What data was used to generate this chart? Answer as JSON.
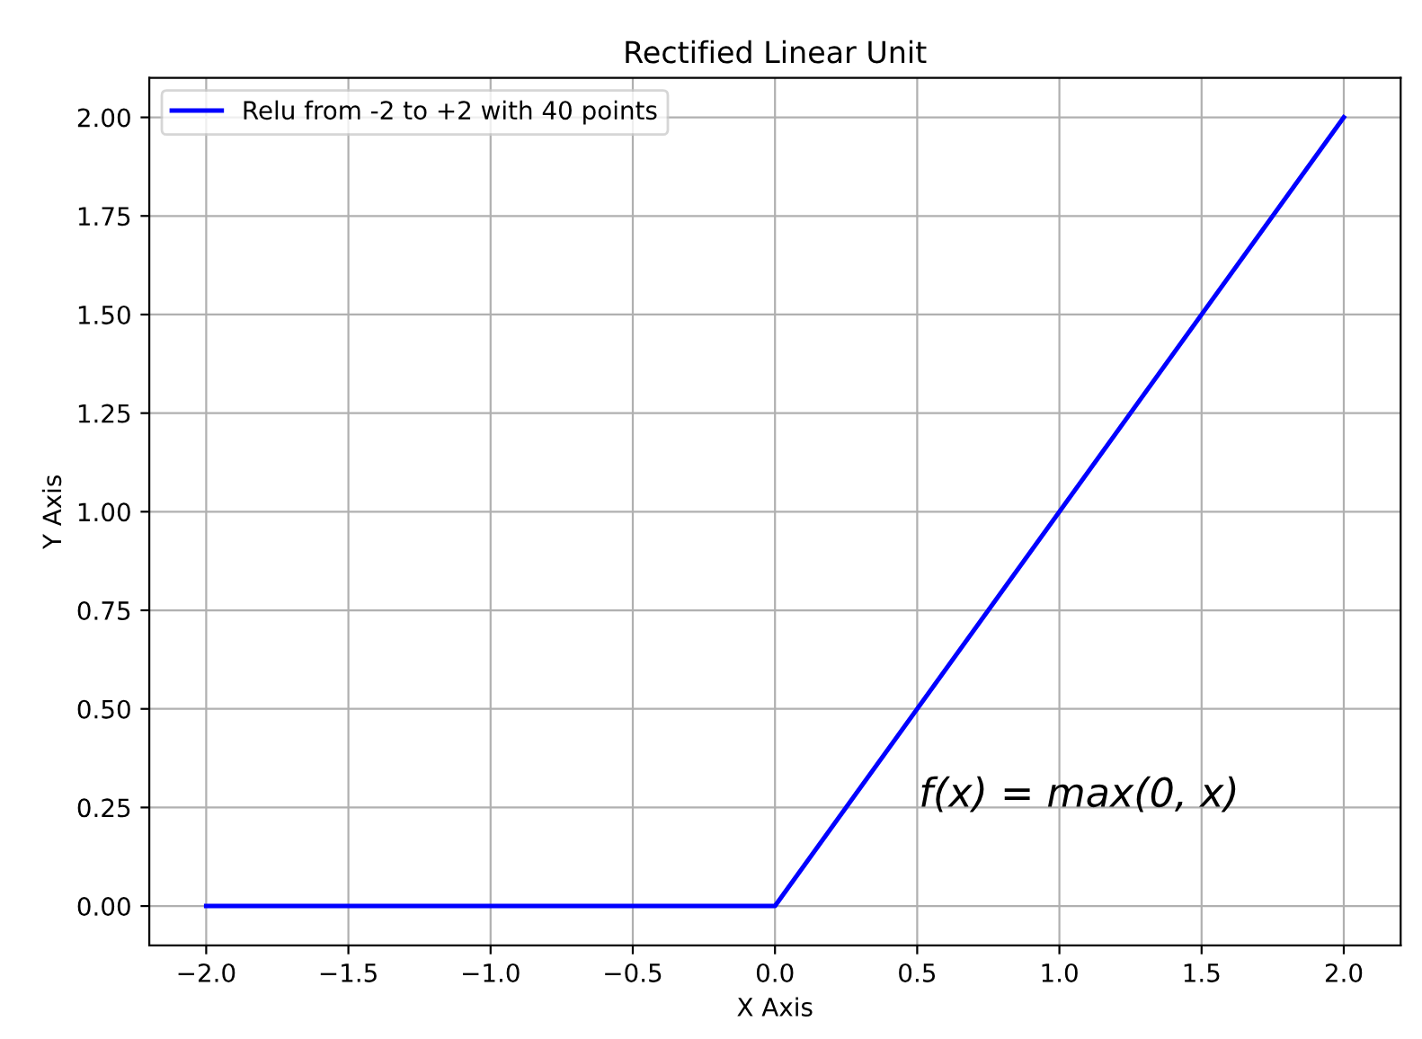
{
  "chart_data": {
    "type": "line",
    "title": "Rectified Linear Unit",
    "xlabel": "X Axis",
    "ylabel": "Y Axis",
    "series": [
      {
        "name": "Relu from -2 to +2 with 40 points",
        "color": "#0000ff",
        "x": [
          -2,
          0,
          2
        ],
        "values": [
          0,
          0,
          2
        ]
      }
    ],
    "annotations": [
      "f(x) = max(0, x)"
    ],
    "xlim": [
      -2.2,
      2.2
    ],
    "ylim": [
      -0.1,
      2.1
    ],
    "xticks": [
      {
        "value": -2,
        "label": "−2.0"
      },
      {
        "value": -1.5,
        "label": "−1.5"
      },
      {
        "value": -1,
        "label": "−1.0"
      },
      {
        "value": -0.5,
        "label": "−0.5"
      },
      {
        "value": 0,
        "label": "0.0"
      },
      {
        "value": 0.5,
        "label": "0.5"
      },
      {
        "value": 1,
        "label": "1.0"
      },
      {
        "value": 1.5,
        "label": "1.5"
      },
      {
        "value": 2,
        "label": "2.0"
      }
    ],
    "yticks": [
      {
        "value": 0,
        "label": "0.00"
      },
      {
        "value": 0.25,
        "label": "0.25"
      },
      {
        "value": 0.5,
        "label": "0.50"
      },
      {
        "value": 0.75,
        "label": "0.75"
      },
      {
        "value": 1,
        "label": "1.00"
      },
      {
        "value": 1.25,
        "label": "1.25"
      },
      {
        "value": 1.5,
        "label": "1.50"
      },
      {
        "value": 1.75,
        "label": "1.75"
      },
      {
        "value": 2,
        "label": "2.00"
      }
    ],
    "grid": true,
    "legend": "top left",
    "marker": "none",
    "line_style": "solid"
  }
}
